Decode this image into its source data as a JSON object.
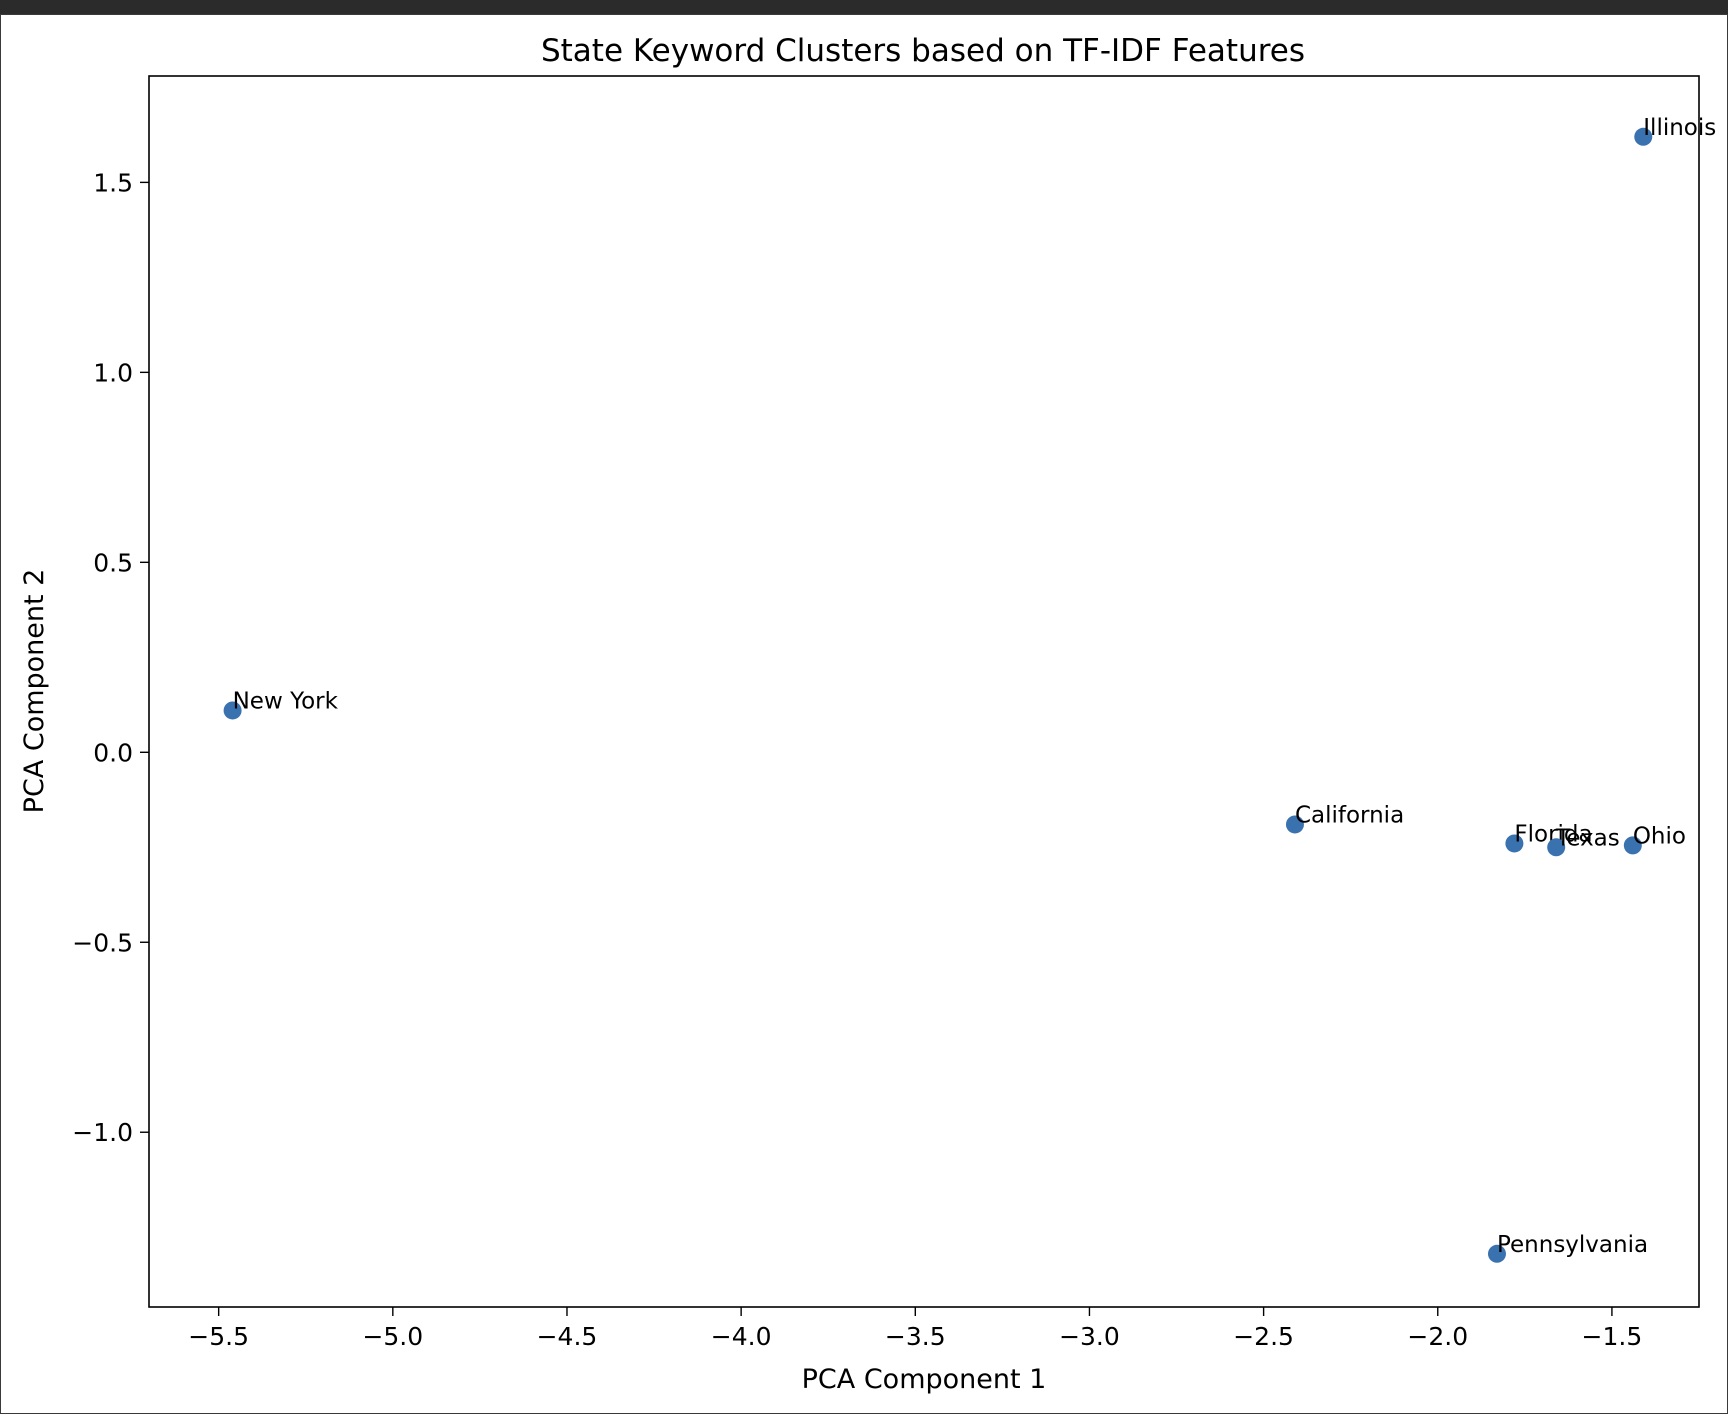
{
  "chart_data": {
    "type": "scatter",
    "title": "State Keyword Clusters based on TF-IDF Features",
    "xlabel": "PCA Component 1",
    "ylabel": "PCA Component 2",
    "xlim": [
      -5.7,
      -1.25
    ],
    "ylim": [
      -1.46,
      1.78
    ],
    "xticks": [
      -5.5,
      -5.0,
      -4.5,
      -4.0,
      -3.5,
      -3.0,
      -2.5,
      -2.0,
      -1.5
    ],
    "xtick_labels": [
      "−5.5",
      "−5.0",
      "−4.5",
      "−4.0",
      "−3.5",
      "−3.0",
      "−2.5",
      "−2.0",
      "−1.5"
    ],
    "yticks": [
      -1.0,
      -0.5,
      0.0,
      0.5,
      1.0,
      1.5
    ],
    "ytick_labels": [
      "−1.0",
      "−0.5",
      "0.0",
      "0.5",
      "1.0",
      "1.5"
    ],
    "grid": false,
    "marker_color": "#3a72b0",
    "points": [
      {
        "label": "New York",
        "x": -5.46,
        "y": 0.11
      },
      {
        "label": "California",
        "x": -2.41,
        "y": -0.19
      },
      {
        "label": "Florida",
        "x": -1.78,
        "y": -0.24
      },
      {
        "label": "Texas",
        "x": -1.66,
        "y": -0.25
      },
      {
        "label": "Ohio",
        "x": -1.44,
        "y": -0.245
      },
      {
        "label": "Illinois",
        "x": -1.41,
        "y": 1.62
      },
      {
        "label": "Pennsylvania",
        "x": -1.83,
        "y": -1.32
      }
    ]
  }
}
